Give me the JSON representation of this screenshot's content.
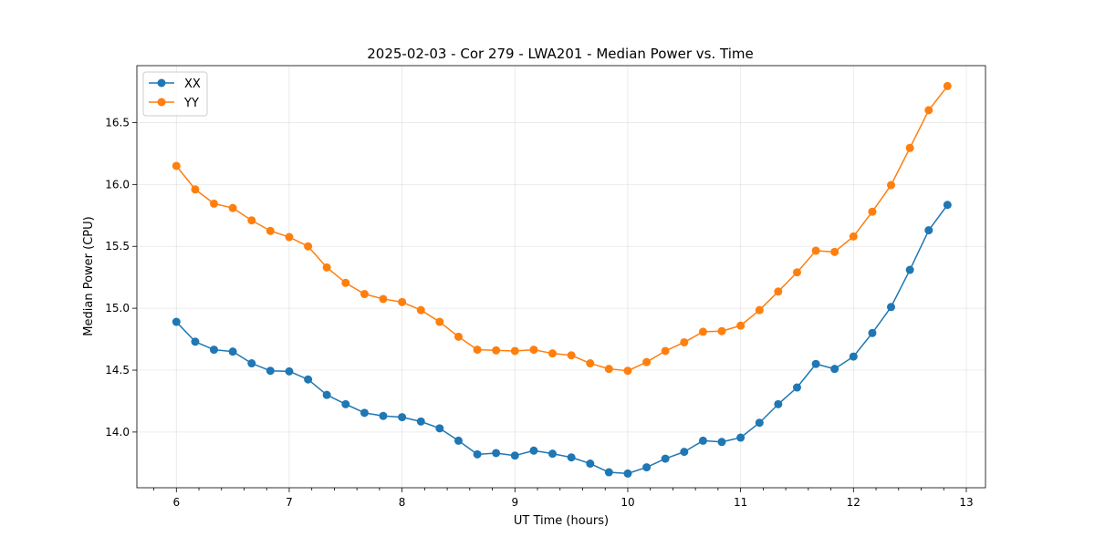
{
  "chart_data": {
    "type": "line",
    "title": "2025-02-03 - Cor 279 - LWA201 - Median Power vs. Time",
    "xlabel": "UT Time (hours)",
    "ylabel": "Median Power (CPU)",
    "xlim": [
      5.65,
      13.17
    ],
    "ylim": [
      13.55,
      16.96
    ],
    "xticks": [
      6,
      7,
      8,
      9,
      10,
      11,
      12,
      13
    ],
    "xtick_labels": [
      "6",
      "7",
      "8",
      "9",
      "10",
      "11",
      "12",
      "13"
    ],
    "yticks": [
      14.0,
      14.5,
      15.0,
      15.5,
      16.0,
      16.5
    ],
    "ytick_labels": [
      "14.0",
      "14.5",
      "15.0",
      "15.5",
      "16.0",
      "16.5"
    ],
    "grid": true,
    "legend_position": "upper-left",
    "x": [
      6.0,
      6.167,
      6.333,
      6.5,
      6.667,
      6.833,
      7.0,
      7.167,
      7.333,
      7.5,
      7.667,
      7.833,
      8.0,
      8.167,
      8.333,
      8.5,
      8.667,
      8.833,
      9.0,
      9.167,
      9.333,
      9.5,
      9.667,
      9.833,
      10.0,
      10.167,
      10.333,
      10.5,
      10.667,
      10.833,
      11.0,
      11.167,
      11.333,
      11.5,
      11.667,
      11.833,
      12.0,
      12.167,
      12.333,
      12.5,
      12.667,
      12.833
    ],
    "series": [
      {
        "name": "XX",
        "color": "#1f77b4",
        "values": [
          14.89,
          14.73,
          14.665,
          14.65,
          14.555,
          14.495,
          14.49,
          14.425,
          14.3,
          14.225,
          14.155,
          14.13,
          14.12,
          14.085,
          14.03,
          13.93,
          13.82,
          13.83,
          13.81,
          13.85,
          13.825,
          13.795,
          13.745,
          13.675,
          13.665,
          13.715,
          13.785,
          13.84,
          13.93,
          13.92,
          13.955,
          14.075,
          14.225,
          14.36,
          14.55,
          14.51,
          14.61,
          14.8,
          15.01,
          15.31,
          15.63,
          15.835
        ]
      },
      {
        "name": "YY",
        "color": "#ff7f0e",
        "values": [
          16.15,
          15.96,
          15.845,
          15.81,
          15.71,
          15.625,
          15.575,
          15.5,
          15.33,
          15.205,
          15.115,
          15.075,
          15.05,
          14.985,
          14.89,
          14.77,
          14.665,
          14.66,
          14.655,
          14.665,
          14.635,
          14.62,
          14.555,
          14.51,
          14.495,
          14.565,
          14.655,
          14.725,
          14.81,
          14.815,
          14.86,
          14.985,
          15.135,
          15.29,
          15.465,
          15.455,
          15.58,
          15.78,
          15.995,
          16.295,
          16.6,
          16.795
        ]
      }
    ]
  }
}
